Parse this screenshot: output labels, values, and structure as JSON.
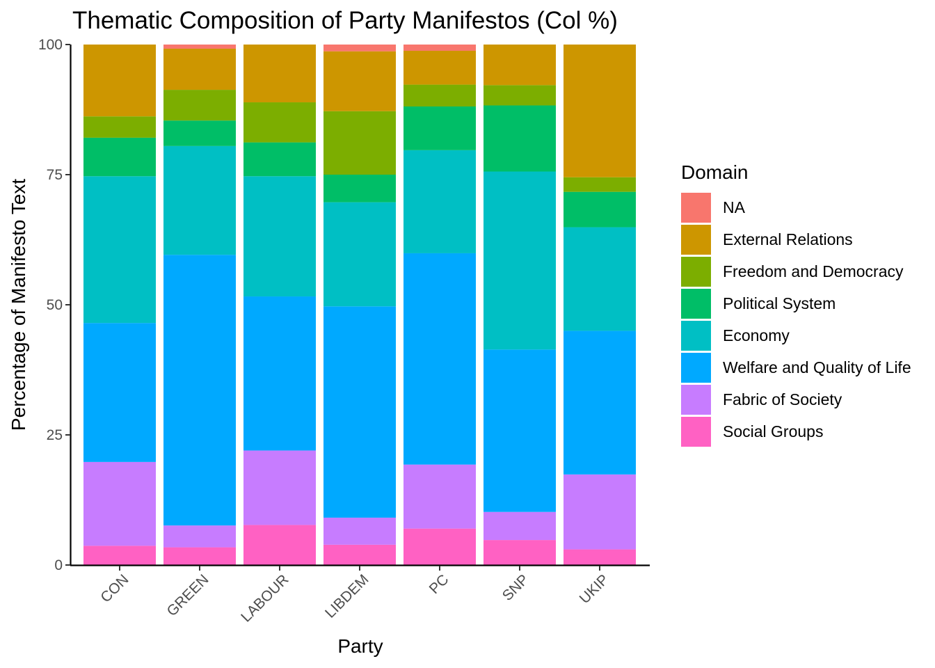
{
  "chart_data": {
    "type": "bar",
    "stacked": true,
    "title": "Thematic Composition of Party Manifestos (Col %)",
    "xlabel": "Party",
    "ylabel": "Percentage of Manifesto Text",
    "ylim": [
      0,
      100
    ],
    "yticks": [
      0,
      25,
      50,
      75,
      100
    ],
    "grid": false,
    "legend_position": "right",
    "legend_title": "Domain",
    "categories": [
      "CON",
      "GREEN",
      "LABOUR",
      "LIBDEM",
      "PC",
      "SNP",
      "UKIP"
    ],
    "series": [
      {
        "name": "Social Groups",
        "color": "#FF61C3",
        "values": [
          3.7,
          3.4,
          7.7,
          3.9,
          7.0,
          4.8,
          3.0
        ]
      },
      {
        "name": "Fabric of Society",
        "color": "#C77CFF",
        "values": [
          16.1,
          4.2,
          14.3,
          5.2,
          12.3,
          5.4,
          14.4
        ]
      },
      {
        "name": "Welfare and Quality of Life",
        "color": "#00A9FF",
        "values": [
          26.7,
          52.0,
          29.6,
          40.6,
          40.6,
          31.2,
          27.6
        ]
      },
      {
        "name": "Economy",
        "color": "#00BFC4",
        "values": [
          28.2,
          20.9,
          23.1,
          20.0,
          19.8,
          34.2,
          19.9
        ]
      },
      {
        "name": "Political System",
        "color": "#00BE67",
        "values": [
          7.4,
          4.9,
          6.5,
          5.3,
          8.4,
          12.7,
          6.8
        ]
      },
      {
        "name": "Freedom and Democracy",
        "color": "#7CAE00",
        "values": [
          4.1,
          5.9,
          7.7,
          12.2,
          4.2,
          3.9,
          2.8
        ]
      },
      {
        "name": "External Relations",
        "color": "#CD9600",
        "values": [
          13.8,
          7.9,
          11.1,
          11.5,
          6.5,
          7.8,
          25.5
        ]
      },
      {
        "name": "NA",
        "color": "#F8766D",
        "values": [
          0,
          0.8,
          0,
          1.3,
          1.2,
          0,
          0
        ]
      }
    ],
    "legend_order": [
      "NA",
      "External Relations",
      "Freedom and Democracy",
      "Political System",
      "Economy",
      "Welfare and Quality of Life",
      "Fabric of Society",
      "Social Groups"
    ]
  }
}
